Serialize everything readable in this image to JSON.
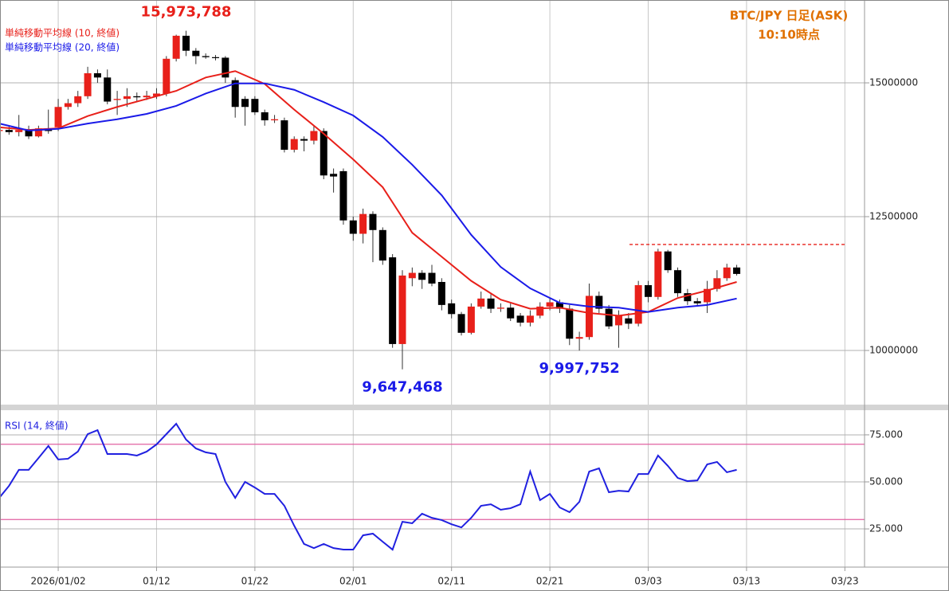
{
  "chart_data": [
    {
      "type": "candlestick",
      "title": "BTC/JPY 日足(ASK)",
      "subtitle": "10:10時点",
      "xlim": [
        -5.92,
        82.0
      ],
      "ylim": [
        8988000,
        16548000
      ],
      "yticks": [
        10000000,
        12500000,
        15000000
      ],
      "grid": true,
      "up_color": "#e8201a",
      "down_color": "#000000",
      "candles": {
        "x": [
          -6,
          -5,
          -4,
          -3,
          -2,
          -1,
          0,
          1,
          2,
          3,
          4,
          5,
          6,
          7,
          8,
          9,
          10,
          11,
          12,
          13,
          14,
          15,
          16,
          17,
          18,
          19,
          20,
          21,
          22,
          23,
          24,
          25,
          26,
          27,
          28,
          29,
          30,
          31,
          32,
          33,
          34,
          35,
          36,
          37,
          38,
          39,
          40,
          41,
          42,
          43,
          44,
          45,
          46,
          47,
          48,
          49,
          50,
          51,
          52,
          53,
          54,
          55,
          56,
          57,
          58,
          59,
          60,
          61,
          62,
          63,
          64,
          65,
          66,
          67,
          68,
          69
        ],
        "open": [
          14100000,
          14120000,
          14080000,
          14120000,
          14000000,
          14150000,
          14170000,
          14550000,
          14620000,
          14750000,
          15180000,
          15100000,
          14680000,
          14700000,
          14750000,
          14730000,
          14750000,
          14800000,
          15450000,
          15880000,
          15600000,
          15500000,
          15480000,
          15470000,
          15050000,
          14700000,
          14700000,
          14450000,
          14300000,
          14300000,
          13750000,
          13950000,
          13920000,
          14100000,
          13300000,
          13350000,
          12430000,
          12180000,
          12550000,
          12250000,
          11740000,
          10120000,
          11350000,
          11450000,
          11450000,
          11280000,
          10880000,
          10680000,
          10330000,
          10820000,
          10970000,
          10780000,
          10800000,
          10650000,
          10520000,
          10650000,
          10820000,
          10900000,
          10780000,
          10220000,
          10250000,
          11020000,
          10780000,
          10470000,
          10600000,
          10500000,
          11220000,
          11000000,
          11850000,
          11500000,
          11070000,
          10920000,
          10900000,
          11150000,
          11350000,
          11550000
        ],
        "high": [
          14150000,
          14200000,
          14400000,
          14200000,
          14200000,
          14500000,
          14700000,
          14700000,
          14850000,
          15300000,
          15250000,
          15250000,
          14850000,
          14900000,
          14820000,
          14850000,
          14900000,
          15500000,
          15900000,
          15973788,
          15650000,
          15550000,
          15520000,
          15500000,
          15100000,
          14750000,
          14750000,
          14500000,
          14400000,
          14350000,
          14000000,
          14000000,
          14200000,
          14150000,
          13400000,
          13400000,
          12500000,
          12650000,
          12600000,
          12300000,
          11800000,
          11500000,
          11550000,
          11500000,
          11600000,
          11350000,
          10950000,
          10720000,
          10880000,
          11100000,
          11050000,
          10880000,
          10880000,
          10700000,
          10750000,
          10900000,
          10980000,
          10950000,
          10850000,
          10350000,
          11250000,
          11100000,
          10850000,
          10750000,
          10700000,
          11300000,
          11300000,
          11900000,
          11880000,
          11550000,
          11150000,
          10980000,
          11300000,
          11500000,
          11620000,
          11600000
        ],
        "low": [
          14050000,
          14030000,
          14000000,
          13950000,
          13980000,
          14050000,
          14100000,
          14500000,
          14550000,
          14700000,
          15000000,
          14600000,
          14400000,
          14550000,
          14650000,
          14680000,
          14700000,
          14750000,
          15400000,
          15500000,
          15350000,
          15450000,
          15420000,
          15000000,
          14350000,
          14200000,
          14400000,
          14200000,
          14250000,
          13700000,
          13700000,
          13720000,
          13850000,
          13200000,
          12950000,
          12350000,
          12050000,
          12000000,
          11650000,
          11600000,
          10050000,
          9647468,
          11200000,
          11150000,
          11200000,
          10750000,
          10600000,
          10280000,
          10300000,
          10780000,
          10700000,
          10720000,
          10550000,
          10450000,
          10450000,
          10600000,
          10750000,
          10700000,
          10100000,
          9997752,
          10200000,
          10700000,
          10400000,
          10050000,
          10400000,
          10450000,
          10900000,
          10950000,
          11450000,
          11000000,
          10850000,
          10820000,
          10700000,
          11100000,
          11300000,
          11400000
        ],
        "close": [
          14120000,
          14080000,
          14120000,
          14000000,
          14150000,
          14100000,
          14550000,
          14620000,
          14750000,
          15180000,
          15100000,
          14650000,
          14700000,
          14750000,
          14730000,
          14760000,
          14800000,
          15450000,
          15880000,
          15600000,
          15500000,
          15480000,
          15470000,
          15100000,
          14550000,
          14550000,
          14450000,
          14300000,
          14320000,
          13750000,
          13950000,
          13920000,
          14100000,
          13270000,
          13250000,
          12430000,
          12180000,
          12550000,
          12250000,
          11680000,
          10120000,
          11400000,
          11450000,
          11320000,
          11250000,
          10850000,
          10680000,
          10330000,
          10820000,
          10970000,
          10780000,
          10800000,
          10600000,
          10520000,
          10650000,
          10820000,
          10900000,
          10780000,
          10220000,
          10250000,
          11020000,
          10780000,
          10450000,
          10650000,
          10500000,
          11220000,
          11000000,
          11850000,
          11500000,
          11070000,
          10920000,
          10880000,
          11150000,
          11350000,
          11550000,
          11430000
        ]
      },
      "series": [
        {
          "name": "単純移動平均線 (10, 終値)",
          "color": "#e8201a",
          "x": [
            -6,
            -3,
            0,
            3,
            6,
            9,
            12,
            15,
            18,
            21,
            24,
            27,
            30,
            33,
            36,
            39,
            42,
            45,
            48,
            51,
            54,
            57,
            60,
            63,
            66,
            69
          ],
          "values": [
            14170000,
            14120000,
            14150000,
            14380000,
            14550000,
            14700000,
            14850000,
            15100000,
            15220000,
            14980000,
            14500000,
            14050000,
            13570000,
            13050000,
            12200000,
            11750000,
            11300000,
            10950000,
            10780000,
            10800000,
            10700000,
            10650000,
            10720000,
            10980000,
            11120000,
            11280000
          ]
        },
        {
          "name": "単純移動平均線 (20, 終値)",
          "color": "#1a1ae8",
          "x": [
            -6,
            -3,
            0,
            3,
            6,
            9,
            12,
            15,
            18,
            21,
            24,
            27,
            30,
            33,
            36,
            39,
            42,
            45,
            48,
            51,
            54,
            57,
            60,
            63,
            66,
            69
          ],
          "values": [
            14240000,
            14110000,
            14140000,
            14240000,
            14320000,
            14420000,
            14570000,
            14800000,
            14990000,
            14990000,
            14870000,
            14640000,
            14390000,
            13990000,
            13470000,
            12900000,
            12160000,
            11560000,
            11160000,
            10890000,
            10820000,
            10800000,
            10720000,
            10800000,
            10850000,
            10970000
          ]
        }
      ],
      "annotations": [
        {
          "text": "15,973,788",
          "x": 13,
          "y": 15973788,
          "color": "#e8201a",
          "position": "above"
        },
        {
          "text": "9,647,468",
          "x": 35,
          "y": 9647468,
          "color": "#1a1ae8",
          "position": "below"
        },
        {
          "text": "9,997,752",
          "x": 53,
          "y": 9997752,
          "color": "#1a1ae8",
          "position": "below"
        }
      ],
      "hline": {
        "y": 11980000,
        "x": [
          58.1,
          80.0
        ],
        "color": "#e8201a",
        "style": "dashed"
      }
    },
    {
      "type": "line",
      "title": "RSI (14, 終値)",
      "xlim": [
        -5.92,
        82.0
      ],
      "ylim": [
        4.7,
        88.1
      ],
      "yticks": [
        {
          "value": 25,
          "label": "25.000"
        },
        {
          "value": 50,
          "label": "50.000"
        },
        {
          "value": 75,
          "label": "75.000"
        }
      ],
      "xticks": [
        {
          "value": 0,
          "label": "2026/01/02"
        },
        {
          "value": 10,
          "label": "01/12"
        },
        {
          "value": 20,
          "label": "01/22"
        },
        {
          "value": 30,
          "label": "02/01"
        },
        {
          "value": 40,
          "label": "02/11"
        },
        {
          "value": 50,
          "label": "02/21"
        },
        {
          "value": 60,
          "label": "03/03"
        },
        {
          "value": 70,
          "label": "03/13"
        },
        {
          "value": 80,
          "label": "03/23"
        }
      ],
      "grid": true,
      "bands": [
        70,
        30
      ],
      "band_color": "#e060a0",
      "x": [
        -6,
        -5,
        -4,
        -3,
        -2,
        -1,
        0,
        1,
        2,
        3,
        4,
        5,
        6,
        7,
        8,
        9,
        10,
        11,
        12,
        13,
        14,
        15,
        16,
        17,
        18,
        19,
        20,
        21,
        22,
        23,
        24,
        25,
        26,
        27,
        28,
        29,
        30,
        31,
        32,
        33,
        34,
        35,
        36,
        37,
        38,
        39,
        40,
        41,
        42,
        43,
        44,
        45,
        46,
        47,
        48,
        49,
        50,
        51,
        52,
        53,
        54,
        55,
        56,
        57,
        58,
        59,
        60,
        61,
        62,
        63,
        64,
        65,
        66,
        67,
        68,
        69
      ],
      "series": [
        {
          "color": "#2020e0",
          "values": [
            41.5,
            47.9,
            56.4,
            56.4,
            62.7,
            69.1,
            61.9,
            62.3,
            66.1,
            75.4,
            77.5,
            64.8,
            64.8,
            64.8,
            64.0,
            66.1,
            69.9,
            75.4,
            80.9,
            72.5,
            67.8,
            65.7,
            64.8,
            50.0,
            41.5,
            50.0,
            47.0,
            43.6,
            43.6,
            37.3,
            26.7,
            17.0,
            14.8,
            17.0,
            14.8,
            14.0,
            14.0,
            21.6,
            22.5,
            18.2,
            14.0,
            28.8,
            28.0,
            33.1,
            30.9,
            29.7,
            27.5,
            25.8,
            30.9,
            37.3,
            38.1,
            35.2,
            36.0,
            38.1,
            55.5,
            40.3,
            43.6,
            36.4,
            33.9,
            39.4,
            55.5,
            57.2,
            44.5,
            45.3,
            44.9,
            54.2,
            54.2,
            64.0,
            58.5,
            52.1,
            50.4,
            50.8,
            59.3,
            60.6,
            55.1,
            56.4
          ]
        }
      ]
    }
  ]
}
